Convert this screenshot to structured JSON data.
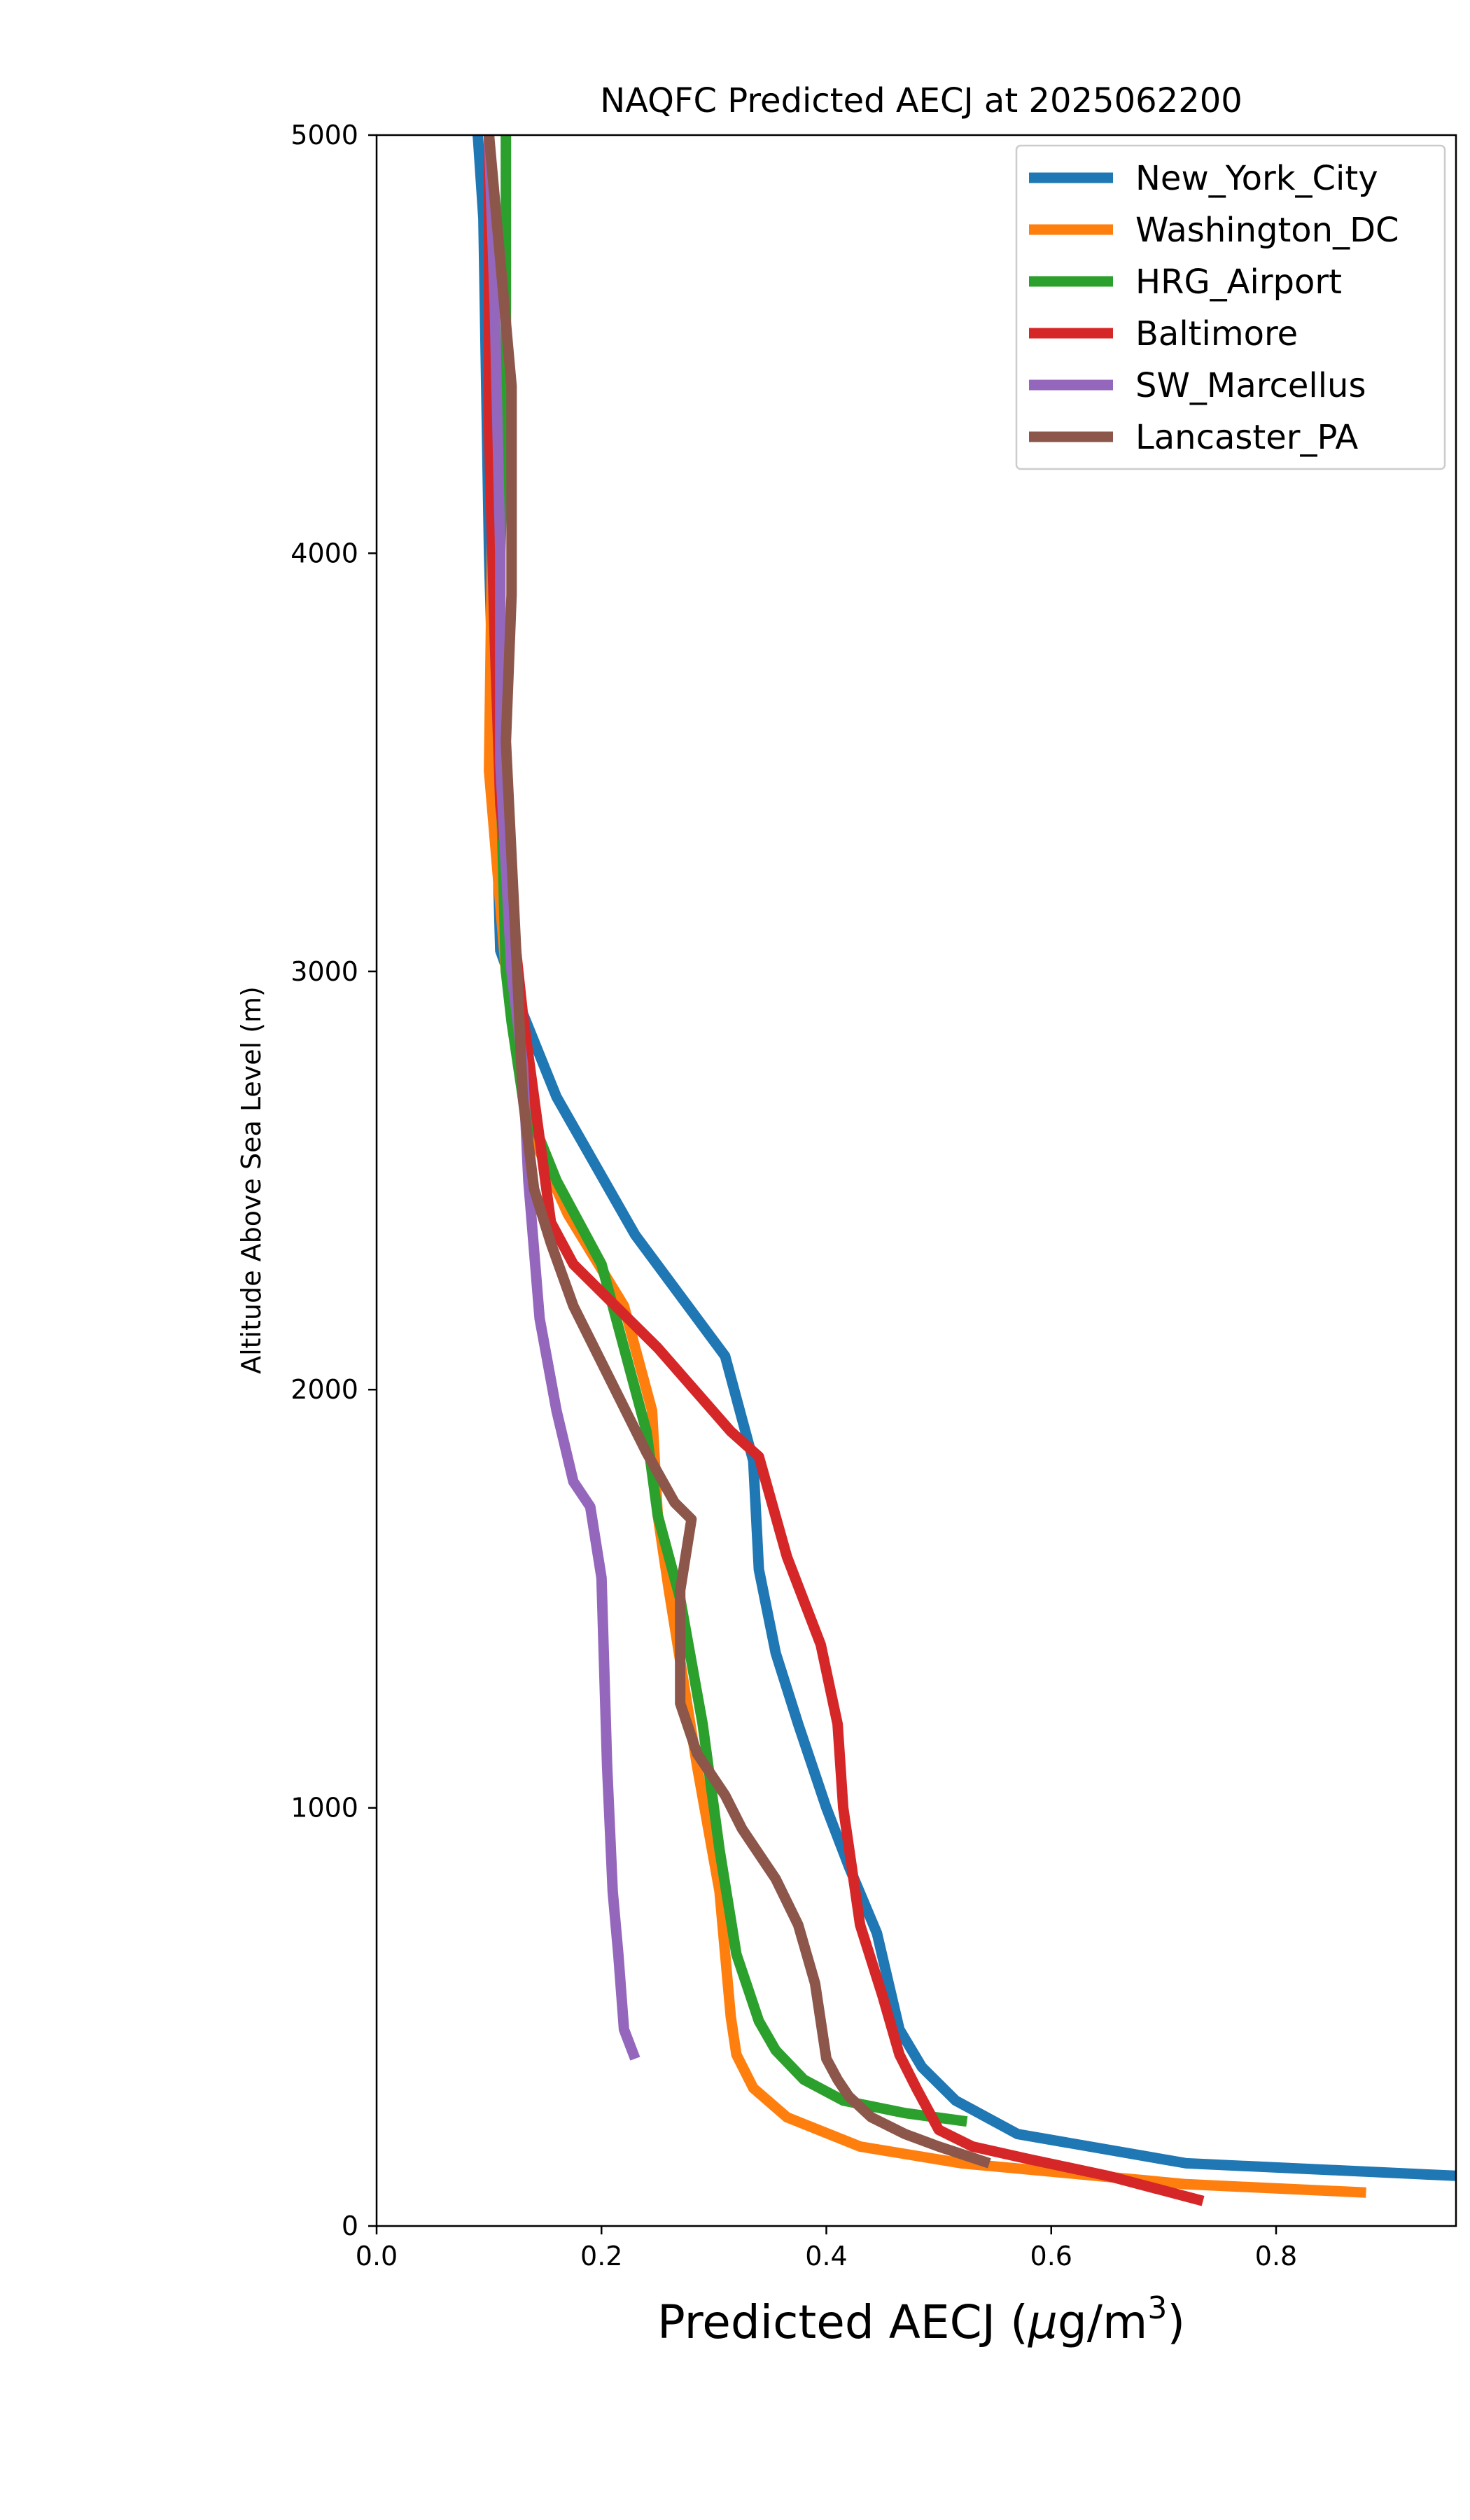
{
  "chart_data": {
    "type": "line",
    "title": "NAQFC Predicted AECJ at 2025062200",
    "xlabel_main": "Predicted AECJ (",
    "xlabel_mu": "μ",
    "xlabel_unit": "g/m",
    "xlabel_sup": "3",
    "xlabel_close": ")",
    "ylabel": "Altitude Above Sea Level (m)",
    "xlim": [
      0.0,
      0.96
    ],
    "ylim": [
      0,
      5000
    ],
    "xticks": [
      0.0,
      0.2,
      0.4,
      0.6,
      0.8
    ],
    "xtick_labels": [
      "0.0",
      "0.2",
      "0.4",
      "0.6",
      "0.8"
    ],
    "yticks": [
      0,
      1000,
      2000,
      3000,
      4000,
      5000
    ],
    "ytick_labels": [
      "0",
      "1000",
      "2000",
      "3000",
      "4000",
      "5000"
    ],
    "grid": false,
    "legend_position": "top-right",
    "series": [
      {
        "name": "New_York_City",
        "color": "#1f77b4",
        "points": [
          [
            0.09,
            5000
          ],
          [
            0.095,
            4800
          ],
          [
            0.1,
            4000
          ],
          [
            0.11,
            3050
          ],
          [
            0.13,
            2900
          ],
          [
            0.16,
            2700
          ],
          [
            0.23,
            2370
          ],
          [
            0.31,
            2080
          ],
          [
            0.335,
            1830
          ],
          [
            0.34,
            1570
          ],
          [
            0.355,
            1370
          ],
          [
            0.375,
            1200
          ],
          [
            0.4,
            1000
          ],
          [
            0.42,
            860
          ],
          [
            0.445,
            700
          ],
          [
            0.465,
            470
          ],
          [
            0.485,
            380
          ],
          [
            0.515,
            300
          ],
          [
            0.57,
            220
          ],
          [
            0.72,
            150
          ],
          [
            0.96,
            120
          ]
        ]
      },
      {
        "name": "Washington_DC",
        "color": "#ff7f0e",
        "points": [
          [
            0.1,
            5000
          ],
          [
            0.105,
            4500
          ],
          [
            0.1,
            3480
          ],
          [
            0.115,
            3000
          ],
          [
            0.14,
            2600
          ],
          [
            0.17,
            2420
          ],
          [
            0.22,
            2200
          ],
          [
            0.245,
            1950
          ],
          [
            0.25,
            1700
          ],
          [
            0.26,
            1520
          ],
          [
            0.285,
            1100
          ],
          [
            0.305,
            800
          ],
          [
            0.315,
            500
          ],
          [
            0.32,
            410
          ],
          [
            0.335,
            330
          ],
          [
            0.365,
            260
          ],
          [
            0.43,
            190
          ],
          [
            0.52,
            150
          ],
          [
            0.6,
            130
          ],
          [
            0.72,
            100
          ],
          [
            0.88,
            80
          ]
        ]
      },
      {
        "name": "HRG_Airport",
        "color": "#2ca02c",
        "points": [
          [
            0.115,
            5000
          ],
          [
            0.115,
            4500
          ],
          [
            0.11,
            4000
          ],
          [
            0.11,
            3500
          ],
          [
            0.115,
            3000
          ],
          [
            0.12,
            2880
          ],
          [
            0.13,
            2700
          ],
          [
            0.16,
            2500
          ],
          [
            0.2,
            2300
          ],
          [
            0.22,
            2100
          ],
          [
            0.24,
            1900
          ],
          [
            0.25,
            1700
          ],
          [
            0.27,
            1500
          ],
          [
            0.29,
            1200
          ],
          [
            0.305,
            900
          ],
          [
            0.32,
            650
          ],
          [
            0.33,
            570
          ],
          [
            0.34,
            490
          ],
          [
            0.355,
            420
          ],
          [
            0.38,
            350
          ],
          [
            0.415,
            300
          ],
          [
            0.47,
            270
          ],
          [
            0.525,
            250
          ]
        ]
      },
      {
        "name": "Baltimore",
        "color": "#d62728",
        "points": [
          [
            0.1,
            5000
          ],
          [
            0.1,
            4300
          ],
          [
            0.105,
            3800
          ],
          [
            0.11,
            3400
          ],
          [
            0.13,
            2900
          ],
          [
            0.145,
            2600
          ],
          [
            0.155,
            2400
          ],
          [
            0.175,
            2300
          ],
          [
            0.25,
            2100
          ],
          [
            0.315,
            1900
          ],
          [
            0.34,
            1840
          ],
          [
            0.365,
            1600
          ],
          [
            0.395,
            1390
          ],
          [
            0.41,
            1200
          ],
          [
            0.415,
            1000
          ],
          [
            0.43,
            720
          ],
          [
            0.45,
            550
          ],
          [
            0.465,
            410
          ],
          [
            0.48,
            330
          ],
          [
            0.5,
            230
          ],
          [
            0.53,
            190
          ],
          [
            0.58,
            160
          ],
          [
            0.65,
            120
          ],
          [
            0.735,
            60
          ]
        ]
      },
      {
        "name": "SW_Marcellus",
        "color": "#9467bd",
        "points": [
          [
            0.1,
            5000
          ],
          [
            0.105,
            4600
          ],
          [
            0.11,
            4000
          ],
          [
            0.11,
            3500
          ],
          [
            0.12,
            3000
          ],
          [
            0.13,
            2780
          ],
          [
            0.135,
            2500
          ],
          [
            0.145,
            2170
          ],
          [
            0.16,
            1950
          ],
          [
            0.175,
            1780
          ],
          [
            0.19,
            1720
          ],
          [
            0.2,
            1550
          ],
          [
            0.205,
            1100
          ],
          [
            0.21,
            800
          ],
          [
            0.215,
            650
          ],
          [
            0.22,
            470
          ],
          [
            0.23,
            400
          ]
        ]
      },
      {
        "name": "Lancaster_PA",
        "color": "#8c564b",
        "points": [
          [
            0.1,
            5000
          ],
          [
            0.11,
            4700
          ],
          [
            0.12,
            4400
          ],
          [
            0.12,
            3900
          ],
          [
            0.115,
            3550
          ],
          [
            0.125,
            3000
          ],
          [
            0.13,
            2700
          ],
          [
            0.14,
            2480
          ],
          [
            0.155,
            2350
          ],
          [
            0.175,
            2200
          ],
          [
            0.24,
            1850
          ],
          [
            0.265,
            1730
          ],
          [
            0.28,
            1690
          ],
          [
            0.27,
            1520
          ],
          [
            0.27,
            1250
          ],
          [
            0.285,
            1130
          ],
          [
            0.31,
            1030
          ],
          [
            0.325,
            950
          ],
          [
            0.355,
            830
          ],
          [
            0.375,
            720
          ],
          [
            0.39,
            580
          ],
          [
            0.4,
            400
          ],
          [
            0.41,
            350
          ],
          [
            0.42,
            310
          ],
          [
            0.44,
            260
          ],
          [
            0.47,
            220
          ],
          [
            0.5,
            190
          ],
          [
            0.545,
            150
          ]
        ]
      }
    ]
  }
}
